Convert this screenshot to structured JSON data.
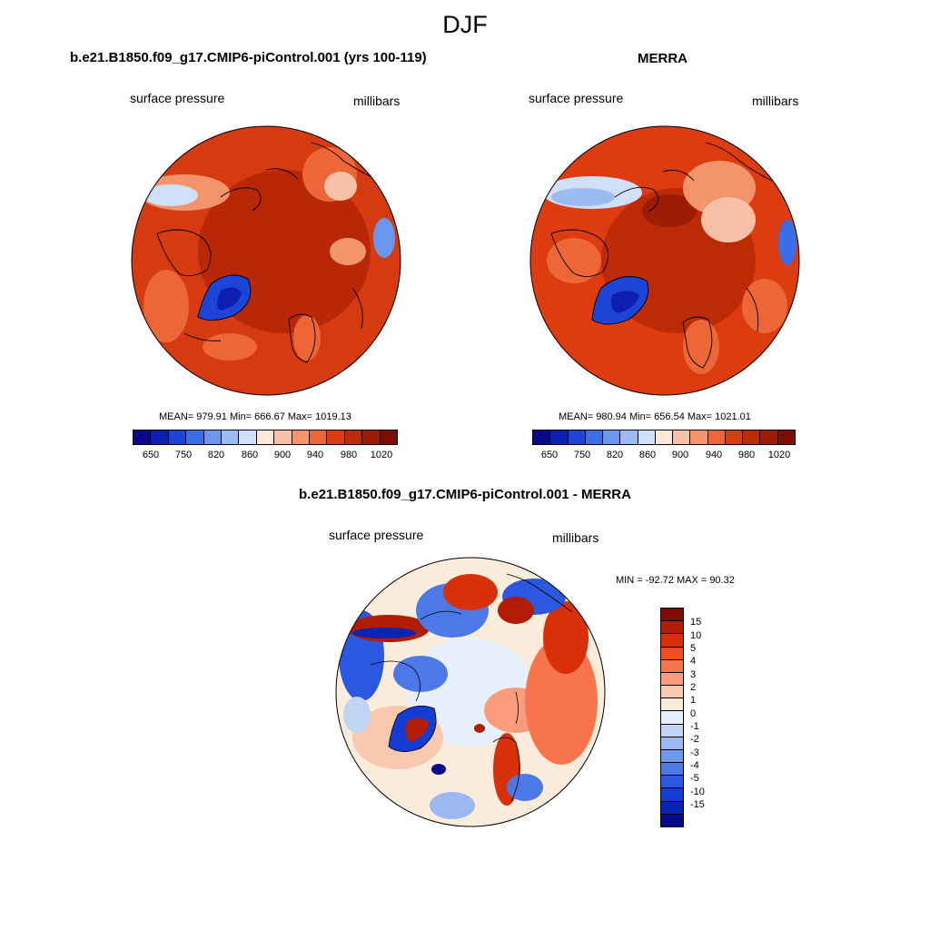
{
  "season": "DJF",
  "left_panel": {
    "title": "b.e21.B1850.f09_g17.CMIP6-piControl.001 (yrs 100-119)",
    "variable": "surface pressure",
    "units": "millibars",
    "stats": "MEAN= 979.91  Min= 666.67  Max= 1019.13"
  },
  "right_panel": {
    "title": "MERRA",
    "variable": "surface pressure",
    "units": "millibars",
    "stats": "MEAN= 980.94  Min= 656.54  Max= 1021.01"
  },
  "diff_panel": {
    "title": "b.e21.B1850.f09_g17.CMIP6-piControl.001 - MERRA",
    "variable": "surface pressure",
    "units": "millibars",
    "minmax": "MIN = -92.72 MAX =  90.32"
  },
  "abs_colorbar": {
    "colors": [
      "#08088c",
      "#0c1fb0",
      "#1c45d8",
      "#3a6ee8",
      "#6b96ee",
      "#9bbcf2",
      "#cfe0f8",
      "#fde8da",
      "#f8c0a6",
      "#f4946c",
      "#ec6638",
      "#dc3c10",
      "#bc2a06",
      "#9c1c04",
      "#7c0c04"
    ],
    "tick_labels": [
      "650",
      "750",
      "820",
      "860",
      "900",
      "940",
      "980",
      "1020"
    ]
  },
  "diff_colorbar": {
    "colors": [
      "#7c0c04",
      "#b01c04",
      "#d83008",
      "#f44c1c",
      "#f8744c",
      "#f89c7c",
      "#f8c8b0",
      "#fcecdc",
      "#e8f0fc",
      "#c0d4f4",
      "#9cb8f0",
      "#7098ec",
      "#4c78e8",
      "#2c58e0",
      "#143cd0",
      "#0824b0",
      "#08088c"
    ],
    "tick_labels": [
      "15",
      "10",
      "5",
      "4",
      "3",
      "2",
      "1",
      "0",
      "-1",
      "-2",
      "-3",
      "-4",
      "-5",
      "-10",
      "-15"
    ]
  }
}
